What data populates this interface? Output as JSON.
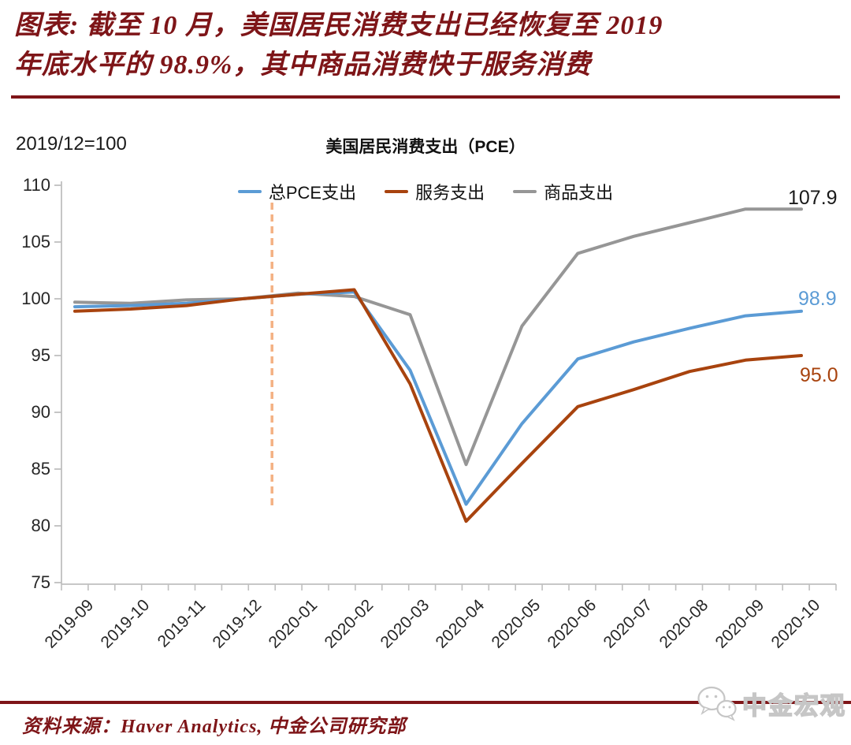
{
  "header": {
    "title_lines": [
      "图表: 截至 10 月，美国居民消费支出已经恢复至 2019",
      "年底水平的 98.9%，其中商品消费快于服务消费"
    ],
    "accent_color": "#7E1518"
  },
  "chart": {
    "axis_note": "2019/12=100",
    "title": "美国居民消费支出（PCE）"
  },
  "chart_data": {
    "type": "line",
    "title": "美国居民消费支出（PCE）",
    "index_note": "2019/12=100",
    "categories": [
      "2019-09",
      "2019-10",
      "2019-11",
      "2019-12",
      "2020-01",
      "2020-02",
      "2020-03",
      "2020-04",
      "2020-05",
      "2020-06",
      "2020-07",
      "2020-08",
      "2020-09",
      "2020-10"
    ],
    "series": [
      {
        "name": "总PCE支出",
        "color": "#5B9BD5",
        "label_color": "#5B9BD5",
        "end_label": "98.9",
        "values": [
          99.3,
          99.4,
          99.6,
          100.0,
          100.4,
          100.6,
          93.7,
          81.9,
          89.0,
          94.7,
          96.2,
          97.4,
          98.5,
          98.9
        ]
      },
      {
        "name": "服务支出",
        "color": "#A8430E",
        "label_color": "#A8430E",
        "end_label": "95.0",
        "values": [
          98.9,
          99.1,
          99.4,
          100.0,
          100.4,
          100.8,
          92.5,
          80.4,
          85.5,
          90.5,
          92.0,
          93.6,
          94.6,
          95.0
        ]
      },
      {
        "name": "商品支出",
        "color": "#969696",
        "label_color": "#1a1a1a",
        "end_label": "107.9",
        "values": [
          99.7,
          99.6,
          99.9,
          100.0,
          100.5,
          100.2,
          98.6,
          85.4,
          97.6,
          104.0,
          105.5,
          106.7,
          107.9,
          107.9
        ]
      }
    ],
    "ylim": [
      75,
      110
    ],
    "yticks": [
      110,
      105,
      100,
      95,
      90,
      85,
      80,
      75
    ],
    "grid": false,
    "legend_position": "top",
    "axis_color": "#BFBFBF",
    "reference_line": {
      "between": [
        "2019-12",
        "2020-01"
      ],
      "color": "#F4B183",
      "style": "dashed"
    }
  },
  "footer": {
    "source": "资料来源：Haver Analytics, 中金公司研究部"
  },
  "watermark": {
    "text": "中金宏观"
  }
}
